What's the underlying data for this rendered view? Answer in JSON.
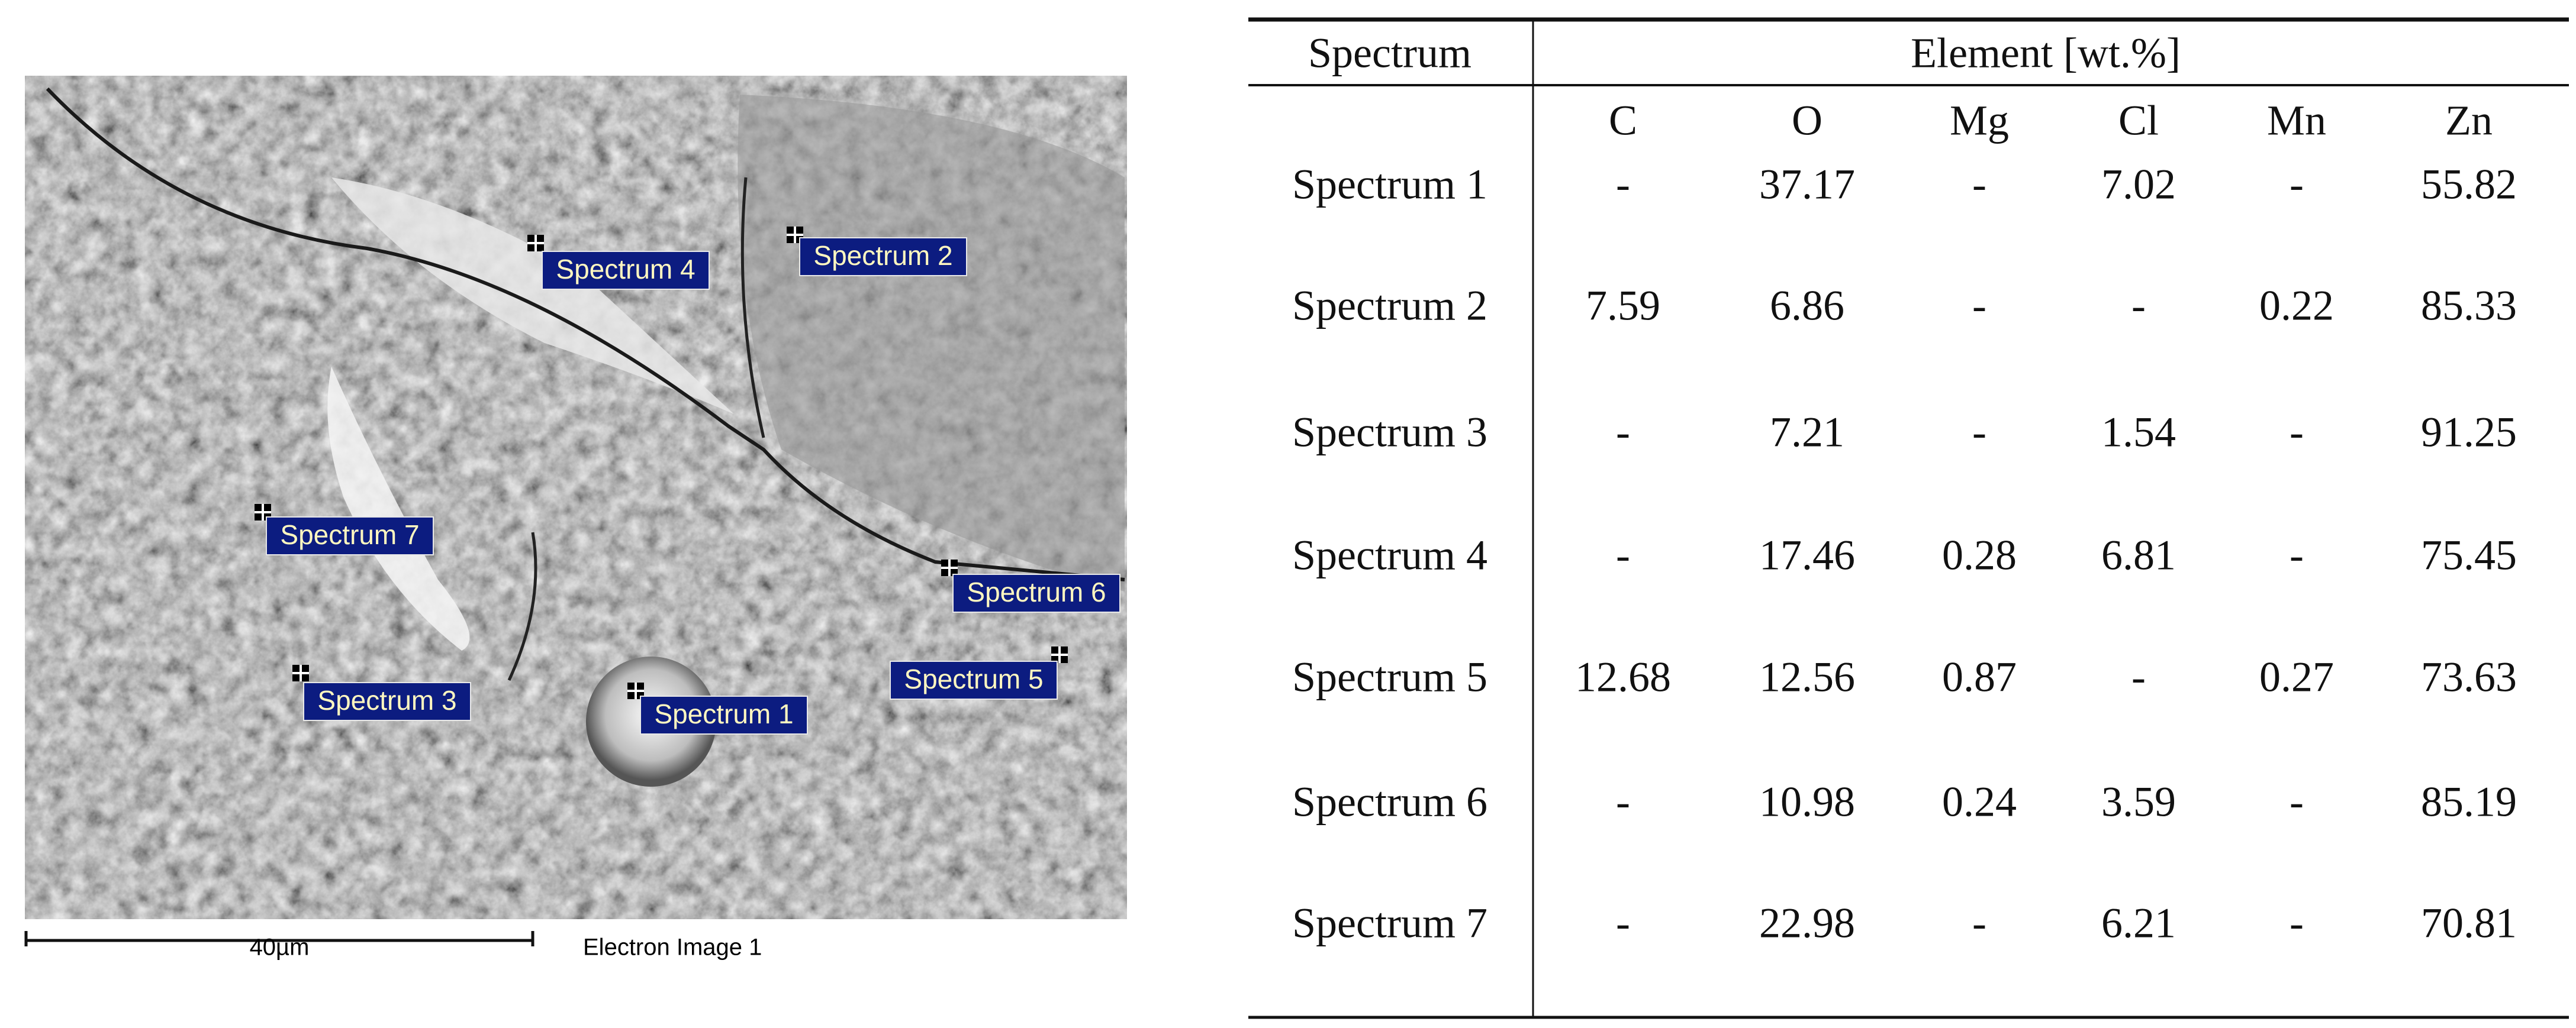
{
  "image": {
    "labels": [
      "Spectrum 4",
      "Spectrum 2",
      "Spectrum 7",
      "Spectrum 6",
      "Spectrum 5",
      "Spectrum 3",
      "Spectrum 1"
    ],
    "scale_bar": "40µm",
    "caption": "Electron Image 1"
  },
  "table": {
    "header": [
      "Spectrum",
      "Element [wt.%]"
    ],
    "columns": [
      "C",
      "O",
      "Mg",
      "Cl",
      "Mn",
      "Zn"
    ],
    "rows": [
      {
        "name": "Spectrum 1",
        "values": [
          "-",
          37.17,
          "-",
          7.02,
          "-",
          55.82
        ]
      },
      {
        "name": "Spectrum 2",
        "values": [
          7.59,
          6.86,
          "-",
          "-",
          0.22,
          85.33
        ]
      },
      {
        "name": "Spectrum 3",
        "values": [
          "-",
          7.21,
          "-",
          1.54,
          "-",
          91.25
        ]
      },
      {
        "name": "Spectrum 4",
        "values": [
          "-",
          17.46,
          0.28,
          6.81,
          "-",
          75.45
        ]
      },
      {
        "name": "Spectrum 5",
        "values": [
          12.68,
          12.56,
          0.87,
          "-",
          0.27,
          73.63
        ]
      },
      {
        "name": "Spectrum 6",
        "values": [
          "-",
          10.98,
          0.24,
          3.59,
          "-",
          85.19
        ]
      },
      {
        "name": "Spectrum 7",
        "values": [
          "-",
          22.98,
          "-",
          6.21,
          "-",
          70.81
        ]
      }
    ]
  }
}
